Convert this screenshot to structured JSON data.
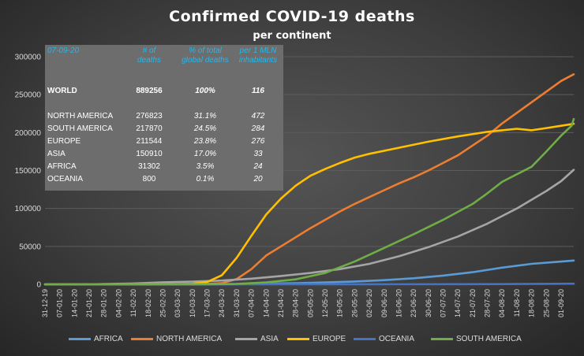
{
  "chart_title": "Confirmed  COVID-19  deaths",
  "chart_subtitle": "per continent",
  "table": {
    "date": "07-09-20",
    "headers": {
      "deaths": [
        "# of",
        "deaths"
      ],
      "pct": [
        "% of total",
        "global deaths"
      ],
      "per_mln": [
        "per 1 MLN",
        "inhabitants"
      ]
    },
    "rows": [
      {
        "name": "WORLD",
        "deaths": "889256",
        "pct": "100%",
        "per_mln": "116"
      },
      {
        "name": "NORTH AMERICA",
        "deaths": "276823",
        "pct": "31.1%",
        "per_mln": "472"
      },
      {
        "name": "SOUTH AMERICA",
        "deaths": "217870",
        "pct": "24.5%",
        "per_mln": "284"
      },
      {
        "name": "EUROPE",
        "deaths": "211544",
        "pct": "23.8%",
        "per_mln": "276"
      },
      {
        "name": "ASIA",
        "deaths": "150910",
        "pct": "17.0%",
        "per_mln": "33"
      },
      {
        "name": "AFRICA",
        "deaths": "31302",
        "pct": "3.5%",
        "per_mln": "24"
      },
      {
        "name": "OCEANIA",
        "deaths": "800",
        "pct": "0.1%",
        "per_mln": "20"
      }
    ]
  },
  "chart_data": {
    "type": "line",
    "title": "Confirmed  COVID-19  deaths",
    "subtitle": "per continent",
    "ylim": [
      0,
      300000
    ],
    "y_ticks": [
      "0",
      "50000",
      "100000",
      "150000",
      "200000",
      "250000",
      "300000"
    ],
    "y_tick_values": [
      0,
      50000,
      100000,
      150000,
      200000,
      250000,
      300000
    ],
    "x_start": "2019-12-31",
    "x_end": "2020-09-07",
    "x_tick_labels": [
      "31-12-19",
      "07-01-20",
      "14-01-20",
      "21-01-20",
      "28-01-20",
      "04-02-20",
      "11-02-20",
      "18-02-20",
      "25-02-20",
      "03-03-20",
      "10-03-20",
      "17-03-20",
      "24-03-20",
      "31-03-20",
      "07-04-20",
      "14-04-20",
      "21-04-20",
      "28-04-20",
      "05-05-20",
      "12-05-20",
      "19-05-20",
      "26-05-20",
      "02-06-20",
      "09-06-20",
      "16-06-20",
      "23-06-20",
      "30-06-20",
      "07-07-20",
      "14-07-20",
      "21-07-20",
      "28-07-20",
      "04-08-20",
      "11-08-20",
      "18-08-20",
      "25-08-20",
      "01-09-20"
    ],
    "grid": true,
    "legend_position": "bottom",
    "series": [
      {
        "name": "AFRICA",
        "color": "#5b9bd5",
        "points": [
          [
            "2019-12-31",
            0
          ],
          [
            "2020-03-17",
            30
          ],
          [
            "2020-03-31",
            200
          ],
          [
            "2020-04-14",
            800
          ],
          [
            "2020-04-28",
            1500
          ],
          [
            "2020-05-12",
            2500
          ],
          [
            "2020-05-26",
            3700
          ],
          [
            "2020-06-09",
            5500
          ],
          [
            "2020-06-23",
            8000
          ],
          [
            "2020-07-07",
            11500
          ],
          [
            "2020-07-21",
            16000
          ],
          [
            "2020-08-04",
            22000
          ],
          [
            "2020-08-18",
            27000
          ],
          [
            "2020-09-01",
            30000
          ],
          [
            "2020-09-07",
            31302
          ]
        ]
      },
      {
        "name": "NORTH AMERICA",
        "color": "#ed7d31",
        "points": [
          [
            "2019-12-31",
            0
          ],
          [
            "2020-03-10",
            50
          ],
          [
            "2020-03-24",
            1500
          ],
          [
            "2020-03-31",
            7000
          ],
          [
            "2020-04-07",
            20000
          ],
          [
            "2020-04-14",
            38000
          ],
          [
            "2020-04-21",
            50000
          ],
          [
            "2020-04-28",
            62000
          ],
          [
            "2020-05-05",
            74000
          ],
          [
            "2020-05-12",
            85000
          ],
          [
            "2020-05-19",
            96000
          ],
          [
            "2020-05-26",
            106000
          ],
          [
            "2020-06-02",
            115000
          ],
          [
            "2020-06-09",
            124000
          ],
          [
            "2020-06-16",
            133000
          ],
          [
            "2020-06-23",
            141000
          ],
          [
            "2020-06-30",
            150000
          ],
          [
            "2020-07-07",
            160000
          ],
          [
            "2020-07-14",
            170000
          ],
          [
            "2020-07-21",
            183000
          ],
          [
            "2020-07-28",
            196000
          ],
          [
            "2020-08-04",
            212000
          ],
          [
            "2020-08-11",
            226000
          ],
          [
            "2020-08-18",
            240000
          ],
          [
            "2020-08-25",
            254000
          ],
          [
            "2020-09-01",
            268000
          ],
          [
            "2020-09-07",
            276823
          ]
        ]
      },
      {
        "name": "ASIA",
        "color": "#a5a5a5",
        "points": [
          [
            "2019-12-31",
            0
          ],
          [
            "2020-01-21",
            10
          ],
          [
            "2020-02-11",
            1100
          ],
          [
            "2020-02-25",
            2700
          ],
          [
            "2020-03-10",
            3600
          ],
          [
            "2020-03-24",
            5000
          ],
          [
            "2020-04-07",
            7500
          ],
          [
            "2020-04-21",
            11000
          ],
          [
            "2020-05-05",
            15000
          ],
          [
            "2020-05-19",
            20000
          ],
          [
            "2020-06-02",
            27000
          ],
          [
            "2020-06-16",
            37000
          ],
          [
            "2020-06-30",
            49000
          ],
          [
            "2020-07-14",
            63000
          ],
          [
            "2020-07-28",
            80000
          ],
          [
            "2020-08-11",
            100000
          ],
          [
            "2020-08-25",
            123000
          ],
          [
            "2020-09-01",
            136000
          ],
          [
            "2020-09-07",
            150910
          ]
        ]
      },
      {
        "name": "EUROPE",
        "color": "#ffc000",
        "points": [
          [
            "2019-12-31",
            0
          ],
          [
            "2020-02-25",
            20
          ],
          [
            "2020-03-10",
            700
          ],
          [
            "2020-03-17",
            3000
          ],
          [
            "2020-03-24",
            12000
          ],
          [
            "2020-03-31",
            35000
          ],
          [
            "2020-04-07",
            64000
          ],
          [
            "2020-04-14",
            92000
          ],
          [
            "2020-04-21",
            113000
          ],
          [
            "2020-04-28",
            130000
          ],
          [
            "2020-05-05",
            143000
          ],
          [
            "2020-05-12",
            152000
          ],
          [
            "2020-05-19",
            160000
          ],
          [
            "2020-05-26",
            167000
          ],
          [
            "2020-06-02",
            172000
          ],
          [
            "2020-06-16",
            180000
          ],
          [
            "2020-06-30",
            188000
          ],
          [
            "2020-07-14",
            195000
          ],
          [
            "2020-07-28",
            201000
          ],
          [
            "2020-08-11",
            205000
          ],
          [
            "2020-08-18",
            203000
          ],
          [
            "2020-08-25",
            206000
          ],
          [
            "2020-09-01",
            209000
          ],
          [
            "2020-09-07",
            211544
          ]
        ]
      },
      {
        "name": "OCEANIA",
        "color": "#4472c4",
        "points": [
          [
            "2019-12-31",
            0
          ],
          [
            "2020-03-24",
            20
          ],
          [
            "2020-04-21",
            100
          ],
          [
            "2020-06-02",
            130
          ],
          [
            "2020-07-14",
            200
          ],
          [
            "2020-08-11",
            450
          ],
          [
            "2020-09-07",
            800
          ]
        ]
      },
      {
        "name": "SOUTH AMERICA",
        "color": "#70ad47",
        "points": [
          [
            "2019-12-31",
            0
          ],
          [
            "2020-03-17",
            20
          ],
          [
            "2020-03-31",
            600
          ],
          [
            "2020-04-14",
            2500
          ],
          [
            "2020-04-28",
            6500
          ],
          [
            "2020-05-12",
            15000
          ],
          [
            "2020-05-26",
            30000
          ],
          [
            "2020-06-09",
            48000
          ],
          [
            "2020-06-23",
            66000
          ],
          [
            "2020-07-07",
            85000
          ],
          [
            "2020-07-21",
            106000
          ],
          [
            "2020-07-28",
            120000
          ],
          [
            "2020-08-04",
            135000
          ],
          [
            "2020-08-18",
            155000
          ],
          [
            "2020-08-25",
            175000
          ],
          [
            "2020-09-01",
            196000
          ],
          [
            "2020-09-06",
            209000
          ],
          [
            "2020-09-07",
            217870
          ]
        ]
      }
    ]
  }
}
